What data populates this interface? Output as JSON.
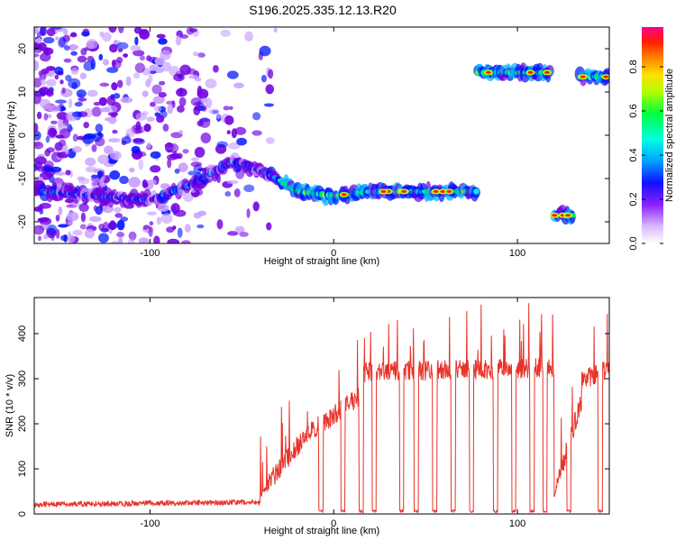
{
  "title": "S196.2025.335.12.13.R20",
  "chart_data": [
    {
      "type": "heatmap",
      "xlabel": "Height of straight line (km)",
      "ylabel": "Frequency (Hz)",
      "xlim": [
        -163,
        150
      ],
      "ylim": [
        -25,
        25
      ],
      "xticks": [
        -100,
        0,
        100
      ],
      "yticks": [
        -20,
        -10,
        0,
        10,
        20
      ],
      "colorbar": {
        "label": "Normalized spectral amplitude",
        "range": [
          0,
          0.98
        ],
        "ticks": [
          "0.0",
          "0.2",
          "0.4",
          "0.6",
          "0.8"
        ],
        "colors": [
          "#ffffff",
          "#c8a0ff",
          "#7000e0",
          "#0010ff",
          "#00b0ff",
          "#00ffd0",
          "#00ff30",
          "#c0ff00",
          "#ffd000",
          "#ff7000",
          "#ff2000",
          "#ff0080"
        ]
      },
      "tracks": [
        {
          "x": [
            -160,
            -130,
            -100,
            -75,
            -55,
            -35,
            -20,
            0,
            20,
            40,
            60,
            78
          ],
          "y": [
            -13,
            -14,
            -15,
            -11,
            -6,
            -9,
            -13,
            -14,
            -13,
            -13,
            -13,
            -13
          ]
        },
        {
          "x": [
            78,
            95,
            110,
            118
          ],
          "y": [
            14.5,
            14.5,
            14.5,
            14.5
          ]
        },
        {
          "x": [
            120,
            130
          ],
          "y": [
            -18.5,
            -18.5
          ]
        },
        {
          "x": [
            134,
            150
          ],
          "y": [
            13.5,
            13.5
          ]
        }
      ]
    },
    {
      "type": "line",
      "xlabel": "Height of straight line (km)",
      "ylabel": "SNR (10 * v/v)",
      "xlim": [
        -163,
        150
      ],
      "ylim": [
        0,
        480
      ],
      "xticks": [
        -100,
        0,
        100
      ],
      "yticks": [
        0,
        100,
        200,
        300,
        400
      ],
      "color": "#e8332a",
      "segments": [
        {
          "x": [
            -163,
            -40
          ],
          "y": [
            20,
            25
          ]
        },
        {
          "x": [
            -40,
            -25,
            -15,
            -5,
            5,
            15
          ],
          "y": [
            40,
            120,
            170,
            200,
            230,
            260
          ]
        },
        {
          "x": [
            15,
            120
          ],
          "y": [
            310,
            320
          ]
        },
        {
          "x": [
            120,
            135
          ],
          "y": [
            40,
            250
          ]
        },
        {
          "x": [
            135,
            150
          ],
          "y": [
            290,
            320
          ]
        }
      ],
      "gaps_near_zero_x": [
        -7,
        5,
        15,
        22,
        37,
        45,
        55,
        65,
        75,
        88,
        98,
        108,
        115,
        128,
        145
      ]
    }
  ]
}
